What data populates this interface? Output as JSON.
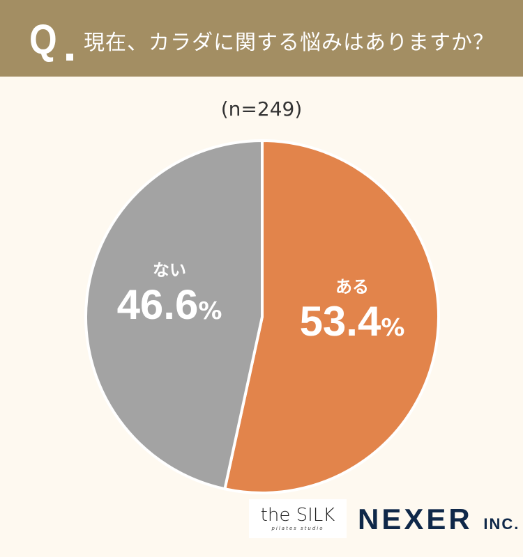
{
  "header": {
    "q_mark": "Q",
    "title": "現在、カラダに関する悩みはありますか？"
  },
  "chart_data": {
    "type": "pie",
    "subtitle": "(n=249)",
    "categories": [
      "ある",
      "ない"
    ],
    "values": [
      53.4,
      46.6
    ],
    "labels": [
      "53.4",
      "46.6"
    ],
    "unit": "%",
    "colors": [
      "#e2844b",
      "#a3a3a3"
    ],
    "start": "top",
    "direction": "clockwise"
  },
  "logos": {
    "silk": "the SILK",
    "silk_sub": "pilates studio",
    "nexer": "NEXER",
    "nexer_inc": "INC."
  }
}
